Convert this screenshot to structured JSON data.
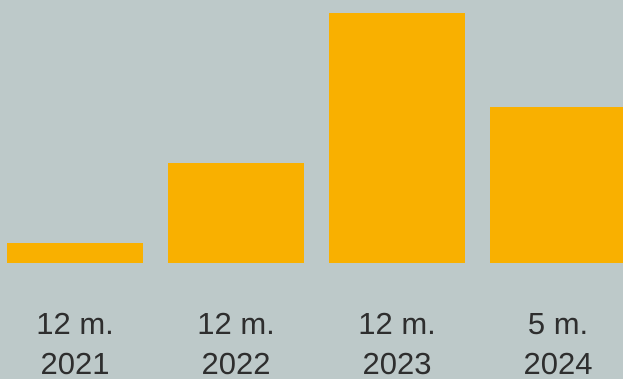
{
  "chart_data": {
    "type": "bar",
    "categories": [
      [
        "12 m.",
        "2021"
      ],
      [
        "12 m.",
        "2022"
      ],
      [
        "12 m.",
        "2023"
      ],
      [
        "5 m.",
        "2024"
      ]
    ],
    "values": [
      20,
      100,
      250,
      156
    ],
    "ylim": [
      0,
      250
    ],
    "grid": false,
    "legend": "none",
    "title": "",
    "xlabel": "",
    "ylabel": "",
    "colors": {
      "bar": "#f9b000",
      "background": "#bdc9c9",
      "label": "#2e2e2e"
    }
  }
}
